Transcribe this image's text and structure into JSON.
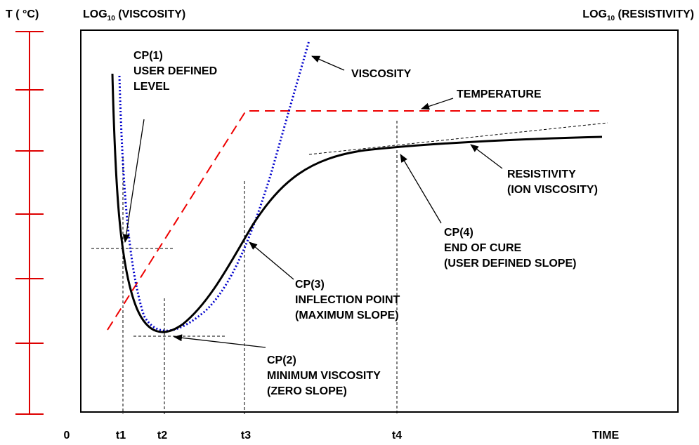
{
  "header": {
    "temperature_axis": "T ( °C)",
    "viscosity_axis": {
      "prefix": "LOG",
      "sub": "10",
      "suffix": " (VISCOSITY)"
    },
    "resistivity_axis": {
      "prefix": "LOG",
      "sub": "10",
      "suffix": " (RESISTIVITY)"
    }
  },
  "annotations": [
    {
      "lines": [
        "CP(1)",
        "USER DEFINED",
        "LEVEL"
      ]
    },
    {
      "lines": [
        "VISCOSITY"
      ]
    },
    {
      "lines": [
        "TEMPERATURE"
      ]
    },
    {
      "lines": [
        "RESISTIVITY",
        "(ION VISCOSITY)"
      ]
    },
    {
      "lines": [
        "CP(4)",
        "END OF CURE",
        "(USER DEFINED SLOPE)"
      ]
    },
    {
      "lines": [
        "CP(3)",
        "INFLECTION POINT",
        "(MAXIMUM SLOPE)"
      ]
    },
    {
      "lines": [
        "CP(2)",
        "MINIMUM VISCOSITY",
        "(ZERO SLOPE)"
      ]
    }
  ],
  "x_labels": [
    "0",
    "t1",
    "t2",
    "t3",
    "t4",
    "TIME"
  ]
}
